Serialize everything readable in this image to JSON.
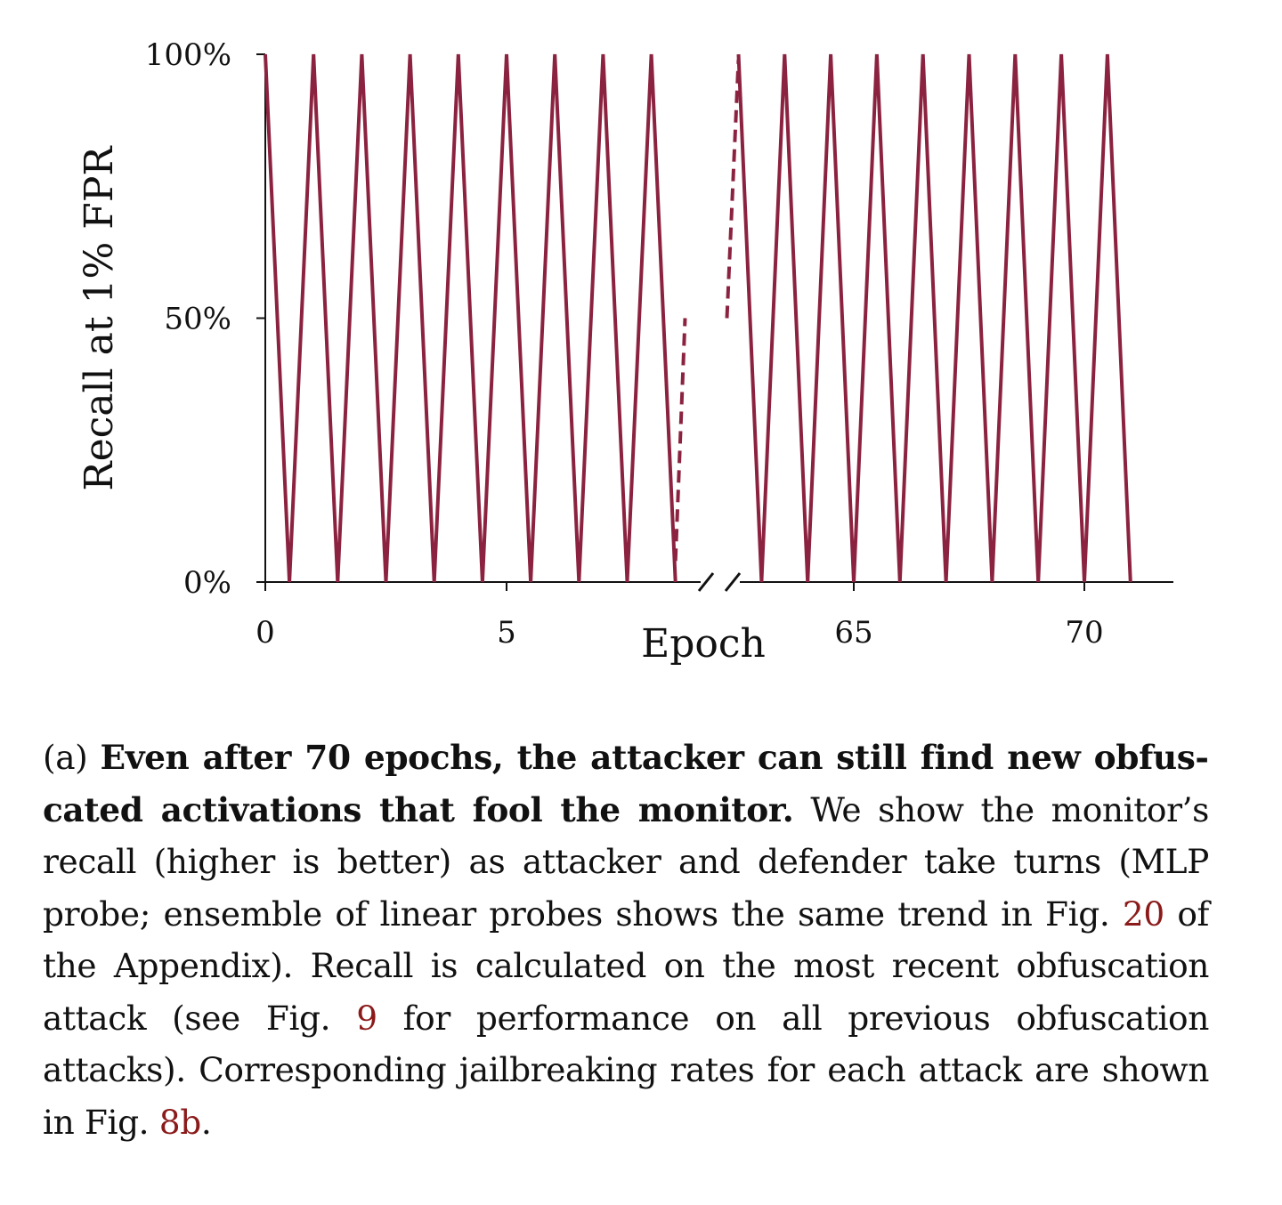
{
  "chart_data": {
    "type": "line",
    "xlabel": "Epoch",
    "ylabel": "Recall at 1% FPR",
    "ylim": [
      0,
      1
    ],
    "yticks": [
      {
        "value": 0,
        "label": "0%"
      },
      {
        "value": 0.5,
        "label": "50%"
      },
      {
        "value": 1,
        "label": "100%"
      }
    ],
    "xticks_left": [
      {
        "value": 0,
        "label": "0"
      },
      {
        "value": 5,
        "label": "5"
      }
    ],
    "xticks_right": [
      {
        "value": 65,
        "label": "65"
      },
      {
        "value": 70,
        "label": "70"
      }
    ],
    "segments": [
      {
        "name": "",
        "style": "solid",
        "x": [
          0,
          0.5,
          1,
          1.5,
          2,
          2.5,
          3,
          3.5,
          4,
          4.5,
          5,
          5.5,
          6,
          6.5,
          7,
          7.5,
          8,
          8.5
        ],
        "y": [
          1,
          0,
          1,
          0,
          1,
          0,
          1,
          0,
          1,
          0,
          1,
          0,
          1,
          0,
          1,
          0,
          1,
          0
        ]
      },
      {
        "name": "",
        "style": "dashed",
        "x": [
          8.5,
          8.7
        ],
        "y": [
          0.04,
          0.5
        ]
      },
      {
        "name": "",
        "style": "dashed",
        "x": [
          62.25,
          62.5
        ],
        "y": [
          0.5,
          0.99
        ]
      },
      {
        "name": "",
        "style": "solid",
        "x": [
          62.5,
          63,
          63.5,
          64,
          64.5,
          65,
          65.5,
          66,
          66.5,
          67,
          67.5,
          68,
          68.5,
          69,
          69.5,
          70,
          70.5,
          71
        ],
        "y": [
          1,
          0,
          1,
          0,
          1,
          0,
          1,
          0,
          1,
          0,
          1,
          0,
          1,
          0,
          1,
          0,
          1,
          0
        ]
      }
    ],
    "axis_break": true,
    "grid": false,
    "line_color": "#8b2340"
  },
  "caption": {
    "prefix": "(a) ",
    "bold": "Even after 70 epochs, the attacker can still find new obfus­cated activations that fool the monitor.",
    "text1": " We show the monitor’s recall (higher is better) as attacker and defender take turns (MLP probe; ensemble of linear probes shows the same trend in Fig. ",
    "ref1": "20",
    "text2": " of the Appendix). Recall is calculated on the most recent obfuscation attack (see Fig. ",
    "ref2": "9",
    "text3": " for performance on all previous obfuscation attacks). Corresponding jailbreaking rates for each attack are shown in Fig. ",
    "ref3": "8b",
    "text4": "."
  }
}
